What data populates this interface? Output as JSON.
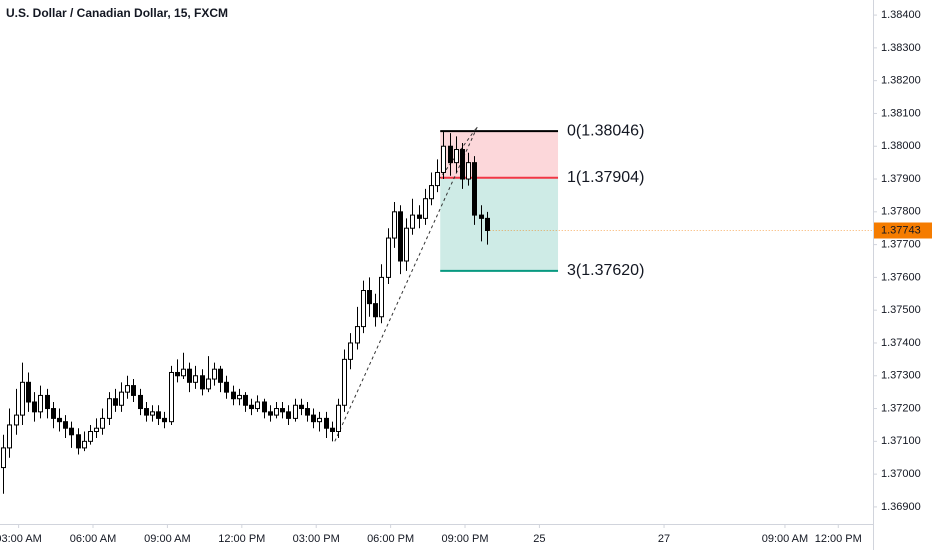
{
  "chart_data": {
    "type": "candlestick",
    "title": "U.S. Dollar / Canadian Dollar, 15, FXCM",
    "open": [
      1.3702,
      1.3708,
      1.3715,
      1.3718,
      1.3728,
      1.3722,
      1.3719,
      1.3724,
      1.372,
      1.3717,
      1.3716,
      1.3714,
      1.3712,
      1.3708,
      1.371,
      1.3713,
      1.3714,
      1.3717,
      1.3723,
      1.3721,
      1.3725,
      1.3727,
      1.3724,
      1.372,
      1.3718,
      1.3719,
      1.3717,
      1.3716,
      1.3731,
      1.373,
      1.3732,
      1.3728,
      1.373,
      1.3726,
      1.3729,
      1.3732,
      1.3728,
      1.3725,
      1.3723,
      1.3724,
      1.3721,
      1.372,
      1.3722,
      1.3719,
      1.3718,
      1.372,
      1.3719,
      1.3717,
      1.3721,
      1.372,
      1.3718,
      1.3716,
      1.3717,
      1.3714,
      1.3713,
      1.3721,
      1.3735,
      1.374,
      1.3745,
      1.3756,
      1.3752,
      1.3748,
      1.376,
      1.3772,
      1.378,
      1.3765,
      1.3775,
      1.3779,
      1.3778,
      1.3784,
      1.3788,
      1.3792,
      1.38,
      1.3795,
      1.3799,
      1.379,
      1.3795,
      1.3779,
      1.3778
    ],
    "high": [
      1.3712,
      1.372,
      1.3726,
      1.3734,
      1.3731,
      1.3725,
      1.3727,
      1.3726,
      1.3722,
      1.372,
      1.3718,
      1.3716,
      1.3714,
      1.3713,
      1.3715,
      1.3717,
      1.372,
      1.3725,
      1.3726,
      1.3728,
      1.373,
      1.3729,
      1.3726,
      1.3722,
      1.3721,
      1.3721,
      1.3719,
      1.3733,
      1.3735,
      1.3737,
      1.3734,
      1.3733,
      1.3732,
      1.3736,
      1.3734,
      1.3733,
      1.373,
      1.3727,
      1.3726,
      1.3725,
      1.3723,
      1.3724,
      1.3723,
      1.3721,
      1.3722,
      1.3722,
      1.3721,
      1.3723,
      1.3723,
      1.3722,
      1.372,
      1.3719,
      1.3719,
      1.3716,
      1.3723,
      1.3738,
      1.3743,
      1.3751,
      1.3759,
      1.376,
      1.3755,
      1.3764,
      1.3775,
      1.3783,
      1.3782,
      1.3778,
      1.3784,
      1.3782,
      1.3787,
      1.3792,
      1.3796,
      1.38046,
      1.3804,
      1.3803,
      1.3801,
      1.3798,
      1.3797,
      1.3782,
      1.378
    ],
    "low": [
      1.3694,
      1.3705,
      1.3712,
      1.3715,
      1.3719,
      1.3716,
      1.3717,
      1.3717,
      1.3714,
      1.3713,
      1.3711,
      1.3708,
      1.3706,
      1.3707,
      1.3709,
      1.3711,
      1.3712,
      1.3715,
      1.3719,
      1.3719,
      1.3723,
      1.3722,
      1.3718,
      1.3716,
      1.3716,
      1.3715,
      1.3714,
      1.3715,
      1.3728,
      1.3729,
      1.3725,
      1.3726,
      1.3724,
      1.3725,
      1.3727,
      1.3725,
      1.3723,
      1.3721,
      1.3721,
      1.3719,
      1.3718,
      1.3719,
      1.3717,
      1.3716,
      1.3717,
      1.3717,
      1.3715,
      1.3716,
      1.3718,
      1.3716,
      1.3714,
      1.3713,
      1.3711,
      1.371,
      1.3711,
      1.3719,
      1.3732,
      1.3738,
      1.3743,
      1.3748,
      1.3745,
      1.3746,
      1.3758,
      1.3769,
      1.3761,
      1.3762,
      1.3773,
      1.3775,
      1.3776,
      1.3782,
      1.3786,
      1.379,
      1.3791,
      1.3792,
      1.3787,
      1.3788,
      1.3776,
      1.3771,
      1.377
    ],
    "close": [
      1.3708,
      1.3715,
      1.3718,
      1.3728,
      1.3722,
      1.3719,
      1.3724,
      1.372,
      1.3717,
      1.3716,
      1.3714,
      1.3712,
      1.3708,
      1.371,
      1.3713,
      1.3714,
      1.3717,
      1.3723,
      1.3721,
      1.3725,
      1.3727,
      1.3724,
      1.372,
      1.3718,
      1.3719,
      1.3717,
      1.3716,
      1.3731,
      1.373,
      1.3732,
      1.3728,
      1.373,
      1.3726,
      1.3729,
      1.3732,
      1.3728,
      1.3725,
      1.3723,
      1.3724,
      1.3721,
      1.372,
      1.3722,
      1.3719,
      1.3718,
      1.372,
      1.3719,
      1.3717,
      1.3721,
      1.372,
      1.3718,
      1.3716,
      1.3717,
      1.3714,
      1.3713,
      1.3721,
      1.3735,
      1.374,
      1.3745,
      1.3756,
      1.3752,
      1.3748,
      1.376,
      1.3772,
      1.378,
      1.3765,
      1.3775,
      1.3779,
      1.3778,
      1.3784,
      1.3788,
      1.3792,
      1.38,
      1.3795,
      1.3799,
      1.379,
      1.3795,
      1.3779,
      1.3778,
      1.37743
    ],
    "up_color": "#ffffff",
    "down_color": "#000000",
    "last_price": 1.37743,
    "last_price_color": "#f57c00",
    "xlim": [
      -0.5,
      140.3
    ],
    "xticks": [
      {
        "value": 2.5,
        "label": "03:00 AM"
      },
      {
        "value": 14.5,
        "label": "06:00 AM"
      },
      {
        "value": 26.5,
        "label": "09:00 AM"
      },
      {
        "value": 38.5,
        "label": "12:00 PM"
      },
      {
        "value": 50.5,
        "label": "03:00 PM"
      },
      {
        "value": 62.5,
        "label": "06:00 PM"
      },
      {
        "value": 74.5,
        "label": "09:00 PM"
      },
      {
        "value": 86.5,
        "label": "25"
      },
      {
        "value": 106.6,
        "label": "27"
      },
      {
        "value": 126.1,
        "label": "09:00 AM"
      },
      {
        "value": 134.7,
        "label": "12:00 PM"
      }
    ],
    "ylim": [
      1.36854,
      1.38446
    ],
    "yticks": [
      {
        "value": 1.384,
        "label": "1.38400"
      },
      {
        "value": 1.383,
        "label": "1.38300"
      },
      {
        "value": 1.382,
        "label": "1.38200"
      },
      {
        "value": 1.381,
        "label": "1.38100"
      },
      {
        "value": 1.38,
        "label": "1.38000"
      },
      {
        "value": 1.379,
        "label": "1.37900"
      },
      {
        "value": 1.378,
        "label": "1.37800"
      },
      {
        "value": 1.377,
        "label": "1.37700"
      },
      {
        "value": 1.376,
        "label": "1.37600"
      },
      {
        "value": 1.375,
        "label": "1.37500"
      },
      {
        "value": 1.374,
        "label": "1.37400"
      },
      {
        "value": 1.373,
        "label": "1.37300"
      },
      {
        "value": 1.372,
        "label": "1.37200"
      },
      {
        "value": 1.371,
        "label": "1.37100"
      },
      {
        "value": 1.37,
        "label": "1.37000"
      },
      {
        "value": 1.369,
        "label": "1.36900"
      }
    ],
    "fib": {
      "x_range": [
        70.5,
        89.5
      ],
      "levels": [
        {
          "value": 1.38046,
          "label": "0(1.38046)",
          "color": "#000000"
        },
        {
          "value": 1.37904,
          "label": "1(1.37904)",
          "color": "#f23645"
        },
        {
          "value": 1.3762,
          "label": "3(1.37620)",
          "color": "#089981"
        }
      ],
      "trend_x": [
        53.5,
        76.5,
        70.5
      ],
      "trend_y": [
        1.371,
        1.3806,
        1.37904
      ]
    }
  }
}
